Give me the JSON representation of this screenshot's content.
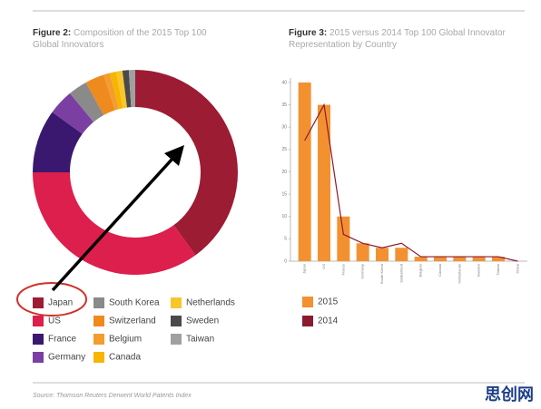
{
  "chart_data": [
    {
      "type": "pie",
      "donut": true,
      "figure_label": "Figure 2:",
      "title": "Composition of the 2015 Top 100 Global Innovators",
      "categories": [
        "Japan",
        "US",
        "France",
        "Germany",
        "South Korea",
        "Switzerland",
        "Belgium",
        "Canada",
        "Netherlands",
        "Sweden",
        "Taiwan"
      ],
      "values": [
        40,
        35,
        10,
        4,
        3,
        3,
        1,
        1,
        1,
        1,
        1
      ],
      "colors": [
        "#9c1c33",
        "#dc1f4c",
        "#3a1870",
        "#7b3fa3",
        "#8a8a8a",
        "#ef8a1f",
        "#f29d2e",
        "#f7b500",
        "#f8c62a",
        "#4a4a4a",
        "#a0a0a0"
      ]
    },
    {
      "type": "bar",
      "figure_label": "Figure 3:",
      "title": "2015 versus 2014 Top 100 Global Innovator Representation by Country",
      "categories": [
        "Japan",
        "US",
        "France",
        "Germany",
        "South Korea",
        "Switzerland",
        "Belgium",
        "Canada",
        "Netherlands",
        "Sweden",
        "Taiwan",
        "China"
      ],
      "series": [
        {
          "name": "2015",
          "type": "bar",
          "color": "#f39131",
          "values": [
            40,
            35,
            10,
            4,
            3,
            3,
            1,
            1,
            1,
            1,
            1,
            0
          ]
        },
        {
          "name": "2014",
          "type": "line",
          "color": "#8a1b2e",
          "values": [
            27,
            35,
            6,
            4,
            3,
            4,
            1,
            1,
            1,
            1,
            1,
            0
          ]
        }
      ],
      "ylim": [
        0,
        41
      ],
      "yticks": [
        0,
        5,
        10,
        15,
        20,
        25,
        30,
        35,
        40
      ]
    }
  ],
  "source": "Source: Thomson Reuters Derwent World Patents Index",
  "watermark": "思创网"
}
